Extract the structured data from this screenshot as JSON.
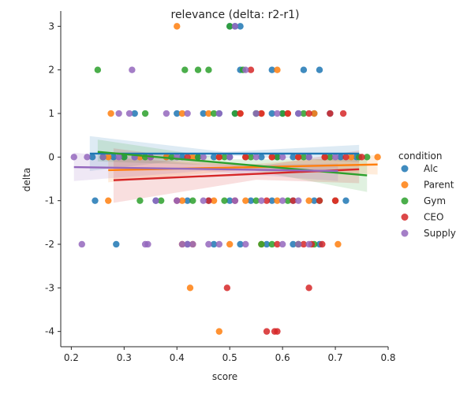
{
  "chart_data": {
    "type": "scatter",
    "title": "relevance (delta: r2-r1)",
    "xlabel": "score",
    "ylabel": "delta",
    "xlim": [
      0.18,
      0.8
    ],
    "ylim": [
      -4.35,
      3.35
    ],
    "xticks": [
      0.2,
      0.3,
      0.4,
      0.5,
      0.6,
      0.7,
      0.8
    ],
    "yticks": [
      -4,
      -3,
      -2,
      -1,
      0,
      1,
      2,
      3
    ],
    "grid": false,
    "legend": {
      "title": "condition",
      "placement": "right"
    },
    "series": [
      {
        "name": "Alc",
        "color": "#1f77b4",
        "points": [
          [
            0.5,
            3
          ],
          [
            0.51,
            3
          ],
          [
            0.52,
            3
          ],
          [
            0.52,
            2
          ],
          [
            0.58,
            2
          ],
          [
            0.64,
            2
          ],
          [
            0.67,
            2
          ],
          [
            0.32,
            1
          ],
          [
            0.4,
            1
          ],
          [
            0.45,
            1
          ],
          [
            0.48,
            1
          ],
          [
            0.51,
            1
          ],
          [
            0.55,
            1
          ],
          [
            0.58,
            1
          ],
          [
            0.6,
            1
          ],
          [
            0.63,
            1
          ],
          [
            0.66,
            1
          ],
          [
            0.69,
            1
          ],
          [
            0.24,
            0
          ],
          [
            0.26,
            0
          ],
          [
            0.28,
            0
          ],
          [
            0.3,
            0
          ],
          [
            0.32,
            0
          ],
          [
            0.35,
            0
          ],
          [
            0.38,
            0
          ],
          [
            0.41,
            0
          ],
          [
            0.44,
            0
          ],
          [
            0.47,
            0
          ],
          [
            0.5,
            0
          ],
          [
            0.53,
            0
          ],
          [
            0.56,
            0
          ],
          [
            0.59,
            0
          ],
          [
            0.62,
            0
          ],
          [
            0.65,
            0
          ],
          [
            0.68,
            0
          ],
          [
            0.71,
            0
          ],
          [
            0.74,
            0
          ],
          [
            0.245,
            -1
          ],
          [
            0.36,
            -1
          ],
          [
            0.42,
            -1
          ],
          [
            0.46,
            -1
          ],
          [
            0.5,
            -1
          ],
          [
            0.54,
            -1
          ],
          [
            0.58,
            -1
          ],
          [
            0.62,
            -1
          ],
          [
            0.66,
            -1
          ],
          [
            0.7,
            -1
          ],
          [
            0.72,
            -1
          ],
          [
            0.285,
            -2
          ],
          [
            0.42,
            -2
          ],
          [
            0.47,
            -2
          ],
          [
            0.52,
            -2
          ],
          [
            0.57,
            -2
          ],
          [
            0.62,
            -2
          ],
          [
            0.67,
            -2
          ]
        ],
        "fit": {
          "x": [
            0.235,
            0.745
          ],
          "y": [
            0.08,
            0.08
          ],
          "band": [
            [
              0.235,
              0.48,
              -0.32
            ],
            [
              0.49,
              0.12,
              0.04
            ],
            [
              0.745,
              0.28,
              -0.12
            ]
          ]
        }
      },
      {
        "name": "Parent",
        "color": "#ff7f0e",
        "points": [
          [
            0.4,
            3
          ],
          [
            0.59,
            2
          ],
          [
            0.275,
            1
          ],
          [
            0.41,
            1
          ],
          [
            0.46,
            1
          ],
          [
            0.52,
            1
          ],
          [
            0.56,
            1
          ],
          [
            0.61,
            1
          ],
          [
            0.66,
            1
          ],
          [
            0.27,
            0
          ],
          [
            0.33,
            0
          ],
          [
            0.38,
            0
          ],
          [
            0.43,
            0
          ],
          [
            0.48,
            0
          ],
          [
            0.53,
            0
          ],
          [
            0.58,
            0
          ],
          [
            0.63,
            0
          ],
          [
            0.68,
            0
          ],
          [
            0.73,
            0
          ],
          [
            0.78,
            0
          ],
          [
            0.27,
            -1
          ],
          [
            0.41,
            -1
          ],
          [
            0.47,
            -1
          ],
          [
            0.53,
            -1
          ],
          [
            0.59,
            -1
          ],
          [
            0.65,
            -1
          ],
          [
            0.7,
            -1
          ],
          [
            0.41,
            -2
          ],
          [
            0.43,
            -2
          ],
          [
            0.5,
            -2
          ],
          [
            0.56,
            -2
          ],
          [
            0.63,
            -2
          ],
          [
            0.705,
            -2
          ],
          [
            0.425,
            -3
          ],
          [
            0.48,
            -4
          ]
        ],
        "fit": {
          "x": [
            0.27,
            0.78
          ],
          "y": [
            -0.3,
            -0.17
          ],
          "band": [
            [
              0.27,
              -0.02,
              -0.58
            ],
            [
              0.52,
              -0.18,
              -0.3
            ],
            [
              0.78,
              0.05,
              -0.4
            ]
          ]
        }
      },
      {
        "name": "Gym",
        "color": "#2ca02c",
        "points": [
          [
            0.5,
            3
          ],
          [
            0.25,
            2
          ],
          [
            0.415,
            2
          ],
          [
            0.44,
            2
          ],
          [
            0.46,
            2
          ],
          [
            0.525,
            2
          ],
          [
            0.34,
            1
          ],
          [
            0.47,
            1
          ],
          [
            0.51,
            1
          ],
          [
            0.55,
            1
          ],
          [
            0.6,
            1
          ],
          [
            0.64,
            1
          ],
          [
            0.26,
            0
          ],
          [
            0.3,
            0
          ],
          [
            0.34,
            0
          ],
          [
            0.39,
            0
          ],
          [
            0.44,
            0
          ],
          [
            0.49,
            0
          ],
          [
            0.54,
            0
          ],
          [
            0.59,
            0
          ],
          [
            0.64,
            0
          ],
          [
            0.69,
            0
          ],
          [
            0.745,
            0
          ],
          [
            0.76,
            0
          ],
          [
            0.33,
            -1
          ],
          [
            0.37,
            -1
          ],
          [
            0.43,
            -1
          ],
          [
            0.49,
            -1
          ],
          [
            0.55,
            -1
          ],
          [
            0.61,
            -1
          ],
          [
            0.67,
            -1
          ],
          [
            0.56,
            -2
          ],
          [
            0.58,
            -2
          ],
          [
            0.63,
            -2
          ],
          [
            0.66,
            -2
          ]
        ],
        "fit": {
          "x": [
            0.25,
            0.76
          ],
          "y": [
            0.12,
            -0.42
          ],
          "band": [
            [
              0.25,
              0.4,
              -0.1
            ],
            [
              0.5,
              -0.05,
              -0.2
            ],
            [
              0.76,
              -0.05,
              -0.8
            ]
          ]
        }
      },
      {
        "name": "CEO",
        "color": "#d62728",
        "points": [
          [
            0.54,
            2
          ],
          [
            0.52,
            1
          ],
          [
            0.56,
            1
          ],
          [
            0.61,
            1
          ],
          [
            0.65,
            1
          ],
          [
            0.69,
            1
          ],
          [
            0.715,
            1
          ],
          [
            0.35,
            0
          ],
          [
            0.42,
            0
          ],
          [
            0.48,
            0
          ],
          [
            0.53,
            0
          ],
          [
            0.58,
            0
          ],
          [
            0.63,
            0
          ],
          [
            0.68,
            0
          ],
          [
            0.72,
            0
          ],
          [
            0.75,
            0
          ],
          [
            0.4,
            -1
          ],
          [
            0.46,
            -1
          ],
          [
            0.51,
            -1
          ],
          [
            0.57,
            -1
          ],
          [
            0.62,
            -1
          ],
          [
            0.67,
            -1
          ],
          [
            0.7,
            -1
          ],
          [
            0.59,
            -2
          ],
          [
            0.64,
            -2
          ],
          [
            0.655,
            -2
          ],
          [
            0.675,
            -2
          ],
          [
            0.495,
            -3
          ],
          [
            0.65,
            -3
          ],
          [
            0.57,
            -4
          ],
          [
            0.585,
            -4
          ],
          [
            0.59,
            -4
          ]
        ],
        "fit": {
          "x": [
            0.28,
            0.745
          ],
          "y": [
            -0.53,
            -0.28
          ],
          "band": [
            [
              0.28,
              0.2,
              -1.05
            ],
            [
              0.55,
              -0.22,
              -0.52
            ],
            [
              0.745,
              0.15,
              -0.6
            ]
          ]
        }
      },
      {
        "name": "Supply",
        "color": "#9467bd",
        "points": [
          [
            0.51,
            3
          ],
          [
            0.315,
            2
          ],
          [
            0.53,
            2
          ],
          [
            0.29,
            1
          ],
          [
            0.31,
            1
          ],
          [
            0.38,
            1
          ],
          [
            0.42,
            1
          ],
          [
            0.48,
            1
          ],
          [
            0.55,
            1
          ],
          [
            0.59,
            1
          ],
          [
            0.63,
            1
          ],
          [
            0.205,
            0
          ],
          [
            0.23,
            0
          ],
          [
            0.26,
            0
          ],
          [
            0.29,
            0
          ],
          [
            0.32,
            0
          ],
          [
            0.35,
            0
          ],
          [
            0.4,
            0
          ],
          [
            0.45,
            0
          ],
          [
            0.5,
            0
          ],
          [
            0.55,
            0
          ],
          [
            0.6,
            0
          ],
          [
            0.65,
            0
          ],
          [
            0.7,
            0
          ],
          [
            0.36,
            -1
          ],
          [
            0.4,
            -1
          ],
          [
            0.45,
            -1
          ],
          [
            0.51,
            -1
          ],
          [
            0.56,
            -1
          ],
          [
            0.6,
            -1
          ],
          [
            0.63,
            -1
          ],
          [
            0.22,
            -2
          ],
          [
            0.34,
            -2
          ],
          [
            0.345,
            -2
          ],
          [
            0.41,
            -2
          ],
          [
            0.42,
            -2
          ],
          [
            0.43,
            -2
          ],
          [
            0.46,
            -2
          ],
          [
            0.48,
            -2
          ],
          [
            0.53,
            -2
          ],
          [
            0.6,
            -2
          ],
          [
            0.63,
            -2
          ],
          [
            0.65,
            -2
          ]
        ],
        "fit": {
          "x": [
            0.205,
            0.705
          ],
          "y": [
            -0.23,
            -0.32
          ],
          "band": [
            [
              0.205,
              0.1,
              -0.55
            ],
            [
              0.45,
              -0.18,
              -0.32
            ],
            [
              0.705,
              -0.15,
              -0.55
            ]
          ]
        }
      }
    ]
  }
}
